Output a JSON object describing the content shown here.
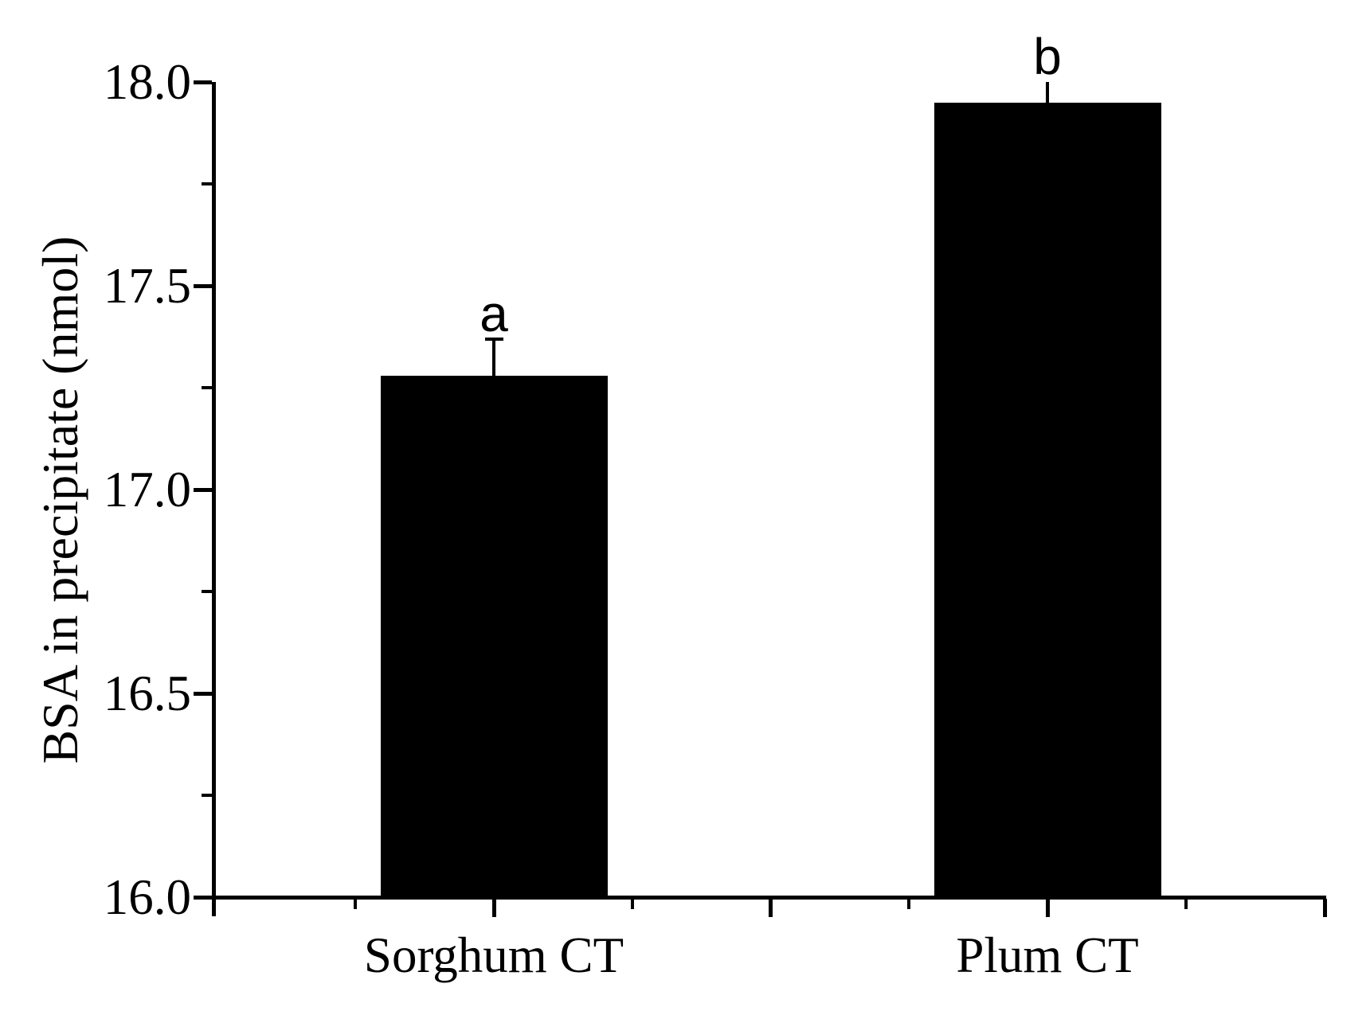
{
  "figure": {
    "background_color": "#ffffff",
    "axis_color": "#000000"
  },
  "chart_data": {
    "type": "bar",
    "title": "",
    "xlabel": "",
    "ylabel": "BSA in precipitate (nmol)",
    "ylim": [
      16.0,
      18.0
    ],
    "y_major_tick_values": [
      16.0,
      16.5,
      17.0,
      17.5,
      18.0
    ],
    "y_major_tick_labels": [
      "16.0",
      "16.5",
      "17.0",
      "17.5",
      "18.0"
    ],
    "y_minor_tick_values": [
      16.25,
      16.75,
      17.25,
      17.75
    ],
    "grid": false,
    "legend": false,
    "bar_color": "#000000",
    "categories": [
      "Sorghum CT",
      "Plum CT"
    ],
    "series": [
      {
        "name": "BSA in precipitate",
        "values": [
          17.28,
          17.95
        ],
        "errors_plus": [
          0.09,
          0.05
        ],
        "error_caps": [
          true,
          false
        ],
        "significance_letters": [
          "a",
          "b"
        ]
      }
    ]
  }
}
